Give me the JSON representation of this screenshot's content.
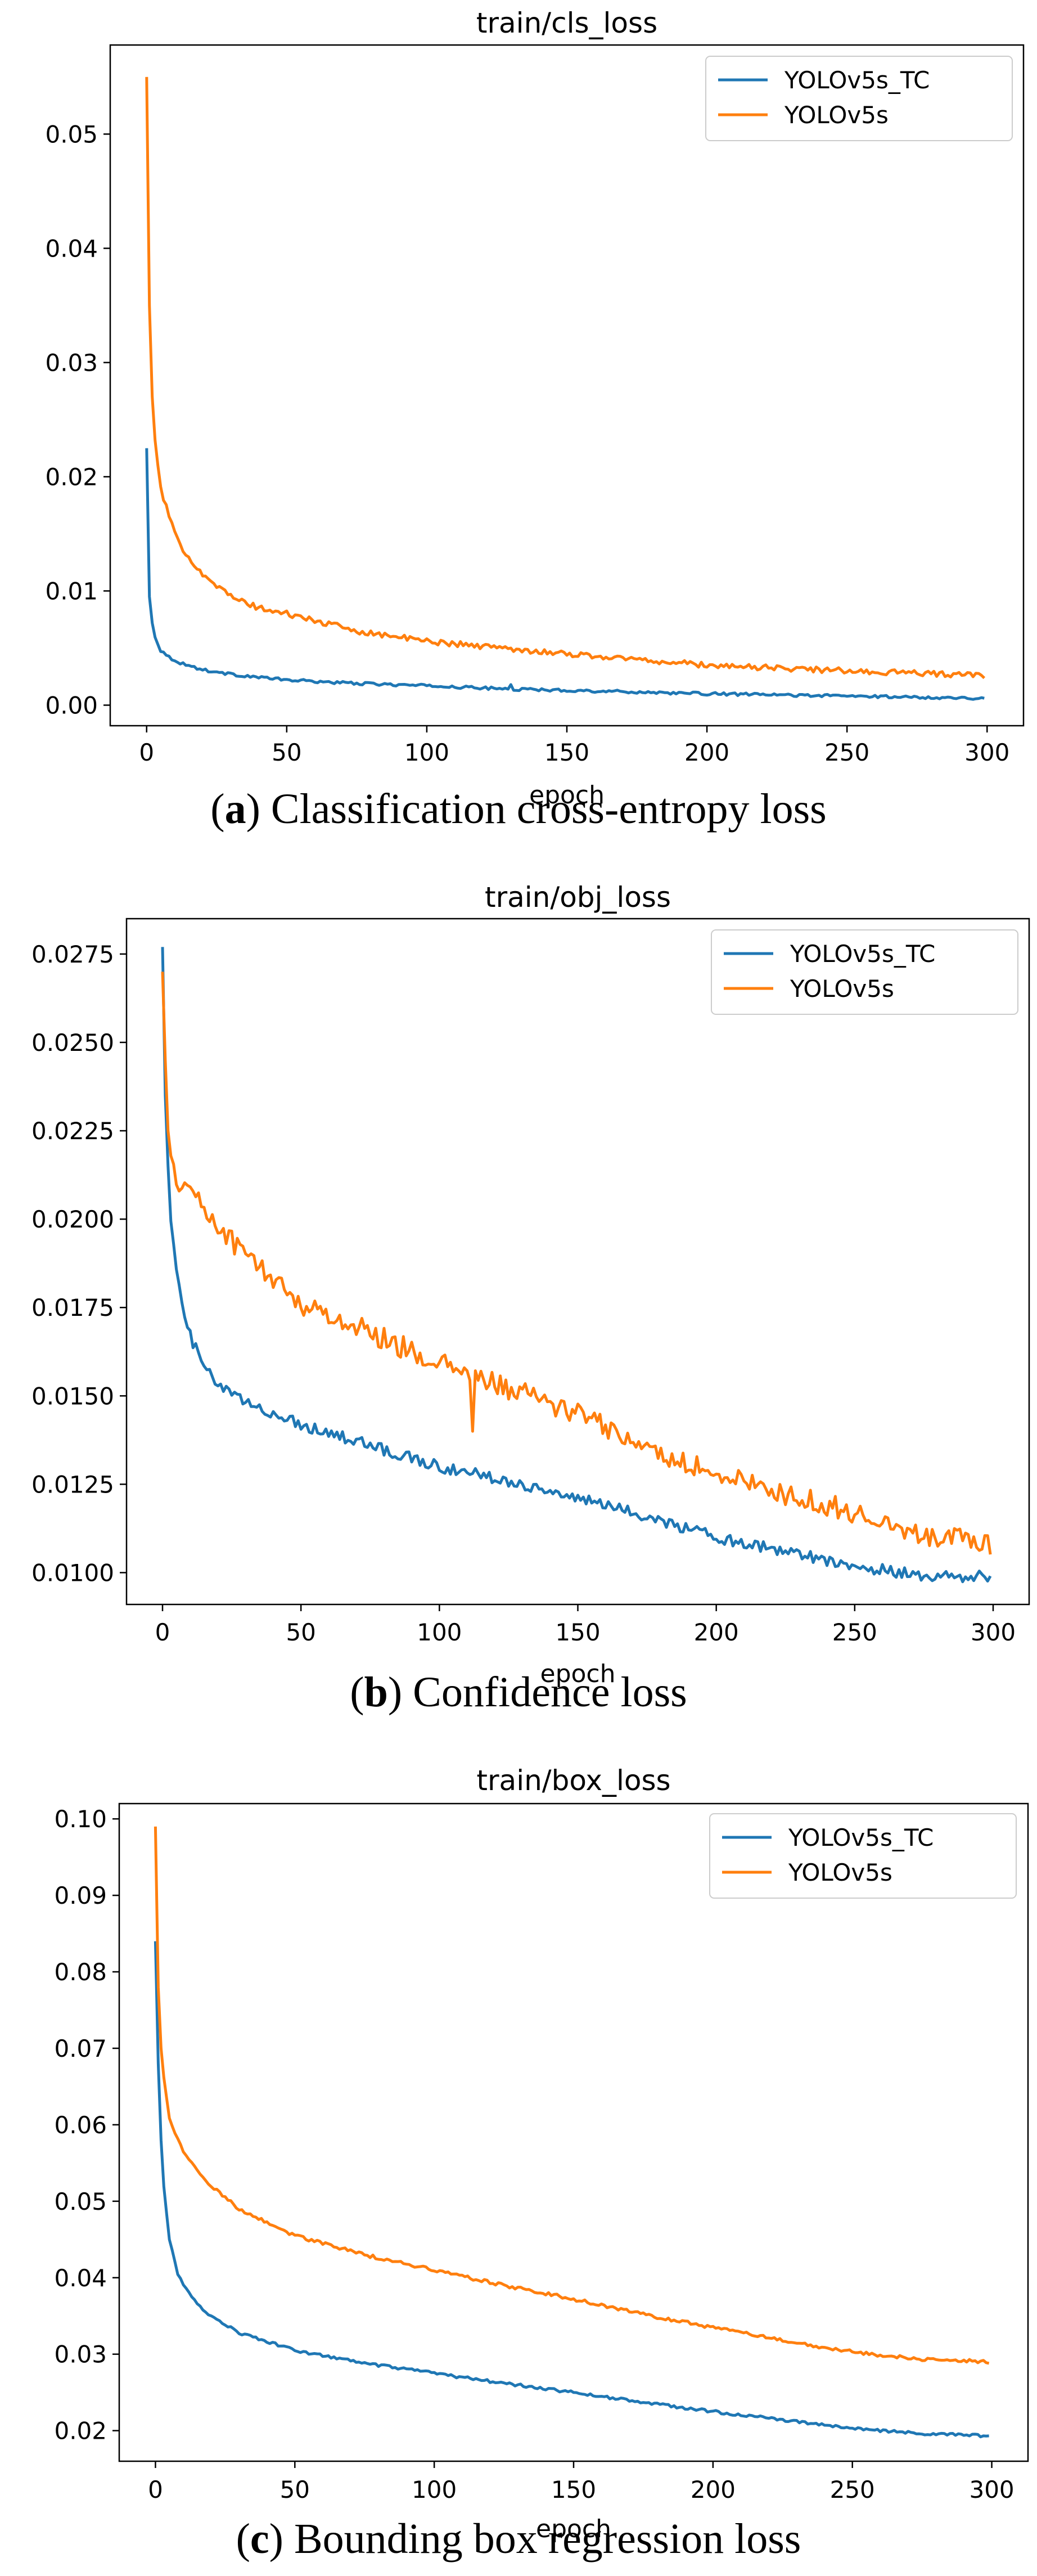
{
  "chart_data": [
    {
      "type": "line",
      "title": "train/cls_loss",
      "xlabel": "epoch",
      "ylabel": "",
      "xlim": [
        -13,
        313
      ],
      "ylim": [
        -0.0018,
        0.0578
      ],
      "xticks": [
        0,
        50,
        100,
        150,
        200,
        250,
        300
      ],
      "xtick_labels": [
        "0",
        "50",
        "100",
        "150",
        "200",
        "250",
        "300"
      ],
      "yticks": [
        0.0,
        0.01,
        0.02,
        0.03,
        0.04,
        0.05
      ],
      "ytick_labels": [
        "0.00",
        "0.01",
        "0.02",
        "0.03",
        "0.04",
        "0.05"
      ],
      "legend": "top-right",
      "caption": {
        "label": "a",
        "open": "(",
        "close": ") ",
        "text": "Classification cross-entropy loss"
      },
      "series": [
        {
          "name": "YOLOv5s_TC",
          "color": "#1f77b4",
          "x": [
            0,
            1,
            2,
            3,
            5,
            8,
            12,
            20,
            30,
            50,
            75,
            100,
            130,
            150,
            200,
            250,
            300
          ],
          "values": [
            0.0225,
            0.0095,
            0.0072,
            0.006,
            0.0048,
            0.0042,
            0.0037,
            0.0031,
            0.0027,
            0.0022,
            0.0019,
            0.0017,
            0.0014,
            0.0013,
            0.001,
            0.0008,
            0.0006
          ],
          "noise": 0.00012,
          "spikes": [
            {
              "x": 130,
              "value": 0.0018
            }
          ]
        },
        {
          "name": "YOLOv5s",
          "color": "#ff7f0e",
          "x": [
            0,
            1,
            2,
            3,
            5,
            8,
            10,
            12,
            15,
            20,
            30,
            40,
            50,
            75,
            100,
            150,
            200,
            250,
            300
          ],
          "values": [
            0.055,
            0.035,
            0.027,
            0.023,
            0.019,
            0.0165,
            0.015,
            0.014,
            0.013,
            0.0115,
            0.0095,
            0.0085,
            0.008,
            0.0065,
            0.0056,
            0.0045,
            0.0035,
            0.003,
            0.0026
          ],
          "noise": 0.00025,
          "spikes": []
        }
      ]
    },
    {
      "type": "line",
      "title": "train/obj_loss",
      "xlabel": "epoch",
      "ylabel": "",
      "xlim": [
        -13,
        313
      ],
      "ylim": [
        0.0091,
        0.0285
      ],
      "xticks": [
        0,
        50,
        100,
        150,
        200,
        250,
        300
      ],
      "xtick_labels": [
        "0",
        "50",
        "100",
        "150",
        "200",
        "250",
        "300"
      ],
      "yticks": [
        0.01,
        0.0125,
        0.015,
        0.0175,
        0.02,
        0.0225,
        0.025,
        0.0275
      ],
      "ytick_labels": [
        "0.0100",
        "0.0125",
        "0.0150",
        "0.0175",
        "0.0200",
        "0.0225",
        "0.0250",
        "0.0275"
      ],
      "legend": "top-right",
      "caption": {
        "label": "b",
        "open": "(",
        "close": ") ",
        "text": "Confidence loss"
      },
      "series": [
        {
          "name": "YOLOv5s_TC",
          "color": "#1f77b4",
          "x": [
            0,
            1,
            2,
            3,
            5,
            8,
            10,
            15,
            20,
            30,
            50,
            75,
            100,
            125,
            150,
            175,
            200,
            225,
            250,
            275,
            300
          ],
          "values": [
            0.0277,
            0.0235,
            0.0215,
            0.02,
            0.0185,
            0.0172,
            0.0167,
            0.0158,
            0.0153,
            0.0148,
            0.0142,
            0.0136,
            0.013,
            0.0126,
            0.0121,
            0.0116,
            0.011,
            0.0106,
            0.0102,
            0.0099,
            0.0099
          ],
          "noise": 0.00016,
          "spikes": []
        },
        {
          "name": "YOLOv5s",
          "color": "#ff7f0e",
          "x": [
            0,
            1,
            2,
            3,
            5,
            8,
            10,
            15,
            20,
            30,
            50,
            75,
            100,
            125,
            150,
            175,
            200,
            225,
            250,
            275,
            300
          ],
          "values": [
            0.027,
            0.0245,
            0.0225,
            0.0215,
            0.021,
            0.0212,
            0.0208,
            0.0203,
            0.0198,
            0.019,
            0.0176,
            0.0168,
            0.0159,
            0.0152,
            0.0145,
            0.0135,
            0.0128,
            0.0122,
            0.0117,
            0.0111,
            0.0108
          ],
          "noise": 0.00032,
          "spikes": [
            {
              "x": 112,
              "value": 0.014
            }
          ]
        }
      ]
    },
    {
      "type": "line",
      "title": "train/box_loss",
      "xlabel": "epoch",
      "ylabel": "",
      "xlim": [
        -13,
        313
      ],
      "ylim": [
        0.016,
        0.102
      ],
      "xticks": [
        0,
        50,
        100,
        150,
        200,
        250,
        300
      ],
      "xtick_labels": [
        "0",
        "50",
        "100",
        "150",
        "200",
        "250",
        "300"
      ],
      "yticks": [
        0.02,
        0.03,
        0.04,
        0.05,
        0.06,
        0.07,
        0.08,
        0.09,
        0.1
      ],
      "ytick_labels": [
        "0.02",
        "0.03",
        "0.04",
        "0.05",
        "0.06",
        "0.07",
        "0.08",
        "0.09",
        "0.10"
      ],
      "legend": "top-right",
      "caption": {
        "label": "c",
        "open": "(",
        "close": ") ",
        "text": "Bounding box regression loss"
      },
      "series": [
        {
          "name": "YOLOv5s_TC",
          "color": "#1f77b4",
          "x": [
            0,
            1,
            2,
            3,
            5,
            8,
            10,
            15,
            20,
            30,
            50,
            75,
            100,
            125,
            150,
            175,
            200,
            225,
            250,
            275,
            300
          ],
          "values": [
            0.084,
            0.068,
            0.058,
            0.052,
            0.045,
            0.0405,
            0.039,
            0.0365,
            0.035,
            0.0328,
            0.0305,
            0.0288,
            0.0275,
            0.0262,
            0.025,
            0.0237,
            0.0225,
            0.0214,
            0.0203,
            0.0196,
            0.0193
          ],
          "noise": 0.00018,
          "spikes": []
        },
        {
          "name": "YOLOv5s",
          "color": "#ff7f0e",
          "x": [
            0,
            1,
            2,
            3,
            5,
            8,
            10,
            15,
            20,
            30,
            50,
            75,
            100,
            125,
            150,
            175,
            200,
            225,
            250,
            275,
            300
          ],
          "values": [
            0.099,
            0.078,
            0.07,
            0.066,
            0.061,
            0.058,
            0.0565,
            0.054,
            0.052,
            0.049,
            0.0455,
            0.043,
            0.041,
            0.039,
            0.0372,
            0.0352,
            0.0335,
            0.0318,
            0.0303,
            0.0293,
            0.029
          ],
          "noise": 0.00022,
          "spikes": []
        }
      ]
    }
  ]
}
